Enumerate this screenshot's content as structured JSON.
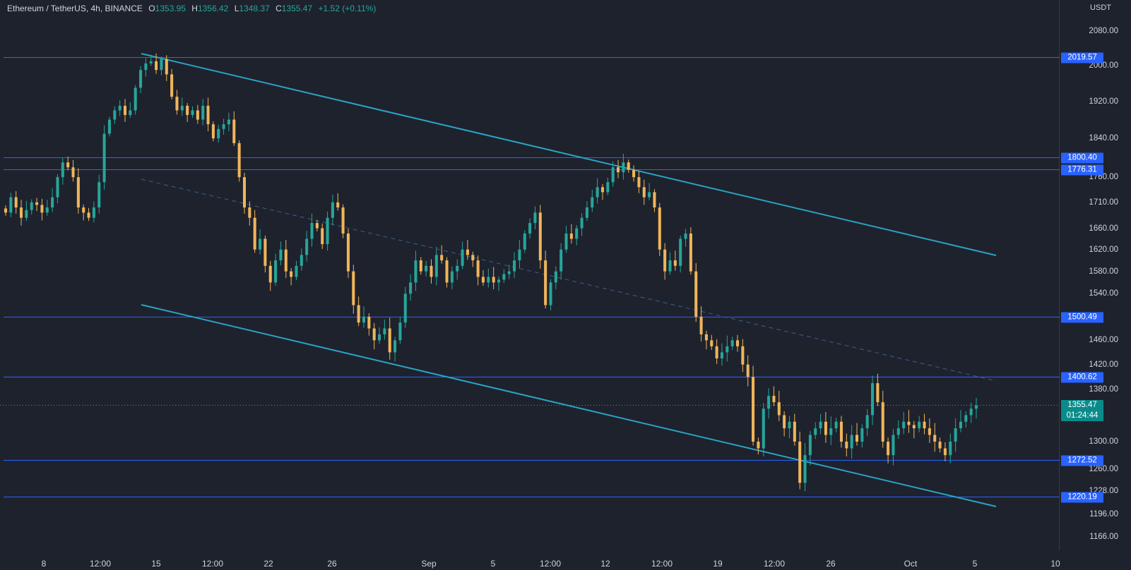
{
  "header": {
    "symbol": "Ethereum / TetherUS, 4h, BINANCE",
    "open_label": "O",
    "open": "1353.95",
    "high_label": "H",
    "high": "1356.42",
    "low_label": "L",
    "low": "1348.37",
    "close_label": "C",
    "close": "1355.47",
    "change": "+1.52 (+0.11%)"
  },
  "colors": {
    "background": "#1e222d",
    "up": "#26a69a",
    "down": "#f0b55a",
    "level_line": "#2962ff",
    "channel": "#2aa3c4",
    "current_price": "#0a8b8b"
  },
  "chart_data": {
    "type": "candlestick",
    "timeframe": "4h",
    "unit": "USDT",
    "ylim": [
      1150,
      2110
    ],
    "y_ticks": [
      "2080.00",
      "2000.00",
      "1920.00",
      "1840.00",
      "1760.00",
      "1710.00",
      "1660.00",
      "1620.00",
      "1580.00",
      "1540.00",
      "1460.00",
      "1420.00",
      "1380.00",
      "1300.00",
      "1260.00",
      "1228.00",
      "1196.00",
      "1166.00"
    ],
    "x_ticks": [
      "8",
      "12:00",
      "15",
      "12:00",
      "22",
      "26",
      "Sep",
      "5",
      "12:00",
      "12",
      "12:00",
      "19",
      "12:00",
      "26",
      "Oct",
      "5",
      "10"
    ],
    "levels": [
      {
        "label": "2019.57",
        "value": 2019.57
      },
      {
        "label": "1800.40",
        "value": 1800.4
      },
      {
        "label": "1776.31",
        "value": 1776.31
      },
      {
        "label": "1500.49",
        "value": 1500.49
      },
      {
        "label": "1400.62",
        "value": 1400.62
      },
      {
        "label": "1272.52",
        "value": 1272.52
      },
      {
        "label": "1220.19",
        "value": 1220.19
      }
    ],
    "current_price": {
      "label": "1355.47",
      "value": 1355.47,
      "countdown": "01:24:44"
    },
    "closes": [
      1690,
      1720,
      1700,
      1680,
      1695,
      1710,
      1705,
      1690,
      1700,
      1720,
      1760,
      1790,
      1780,
      1760,
      1700,
      1690,
      1680,
      1700,
      1750,
      1850,
      1880,
      1900,
      1910,
      1890,
      1900,
      1950,
      1990,
      2005,
      2010,
      1990,
      2015,
      1980,
      1930,
      1900,
      1910,
      1890,
      1900,
      1880,
      1910,
      1870,
      1840,
      1860,
      1870,
      1880,
      1830,
      1760,
      1700,
      1680,
      1620,
      1640,
      1590,
      1560,
      1600,
      1620,
      1580,
      1570,
      1590,
      1610,
      1640,
      1670,
      1660,
      1630,
      1680,
      1710,
      1700,
      1650,
      1580,
      1520,
      1490,
      1500,
      1480,
      1460,
      1470,
      1480,
      1440,
      1460,
      1490,
      1540,
      1560,
      1600,
      1580,
      1590,
      1570,
      1610,
      1600,
      1560,
      1580,
      1590,
      1620,
      1610,
      1600,
      1570,
      1560,
      1570,
      1560,
      1565,
      1575,
      1580,
      1600,
      1620,
      1650,
      1670,
      1690,
      1600,
      1520,
      1560,
      1580,
      1620,
      1650,
      1640,
      1660,
      1680,
      1700,
      1720,
      1740,
      1730,
      1750,
      1780,
      1770,
      1790,
      1775,
      1760,
      1740,
      1720,
      1730,
      1700,
      1620,
      1580,
      1600,
      1590,
      1640,
      1650,
      1580,
      1500,
      1470,
      1460,
      1450,
      1430,
      1440,
      1450,
      1460,
      1450,
      1420,
      1400,
      1300,
      1290,
      1350,
      1370,
      1360,
      1340,
      1320,
      1330,
      1300,
      1240,
      1280,
      1310,
      1320,
      1330,
      1310,
      1320,
      1330,
      1300,
      1290,
      1310,
      1300,
      1320,
      1340,
      1390,
      1360,
      1300,
      1280,
      1310,
      1320,
      1330,
      1325,
      1320,
      1330,
      1320,
      1310,
      1300,
      1290,
      1280,
      1300,
      1320,
      1330,
      1340,
      1350,
      1355
    ]
  }
}
